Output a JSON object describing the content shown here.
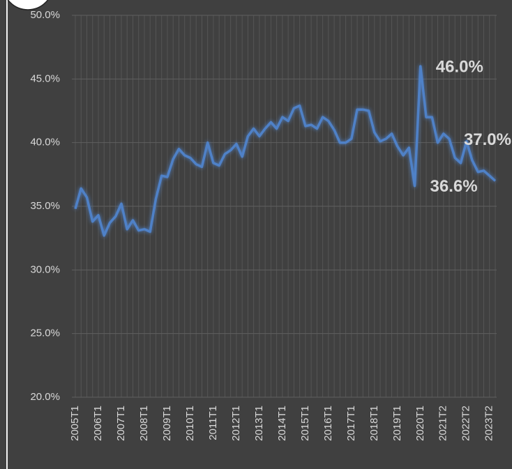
{
  "chart_data": {
    "type": "line",
    "categories": [
      "2005T1",
      null,
      null,
      null,
      "2006T1",
      null,
      null,
      null,
      "2007T1",
      null,
      null,
      null,
      "2008T1",
      null,
      null,
      null,
      "2009T1",
      null,
      null,
      null,
      "2010T1",
      null,
      null,
      null,
      "2011T1",
      null,
      null,
      null,
      "2012T1",
      null,
      null,
      null,
      "2013T1",
      null,
      null,
      null,
      "2014T1",
      null,
      null,
      null,
      "2015T1",
      null,
      null,
      null,
      "2016T1",
      null,
      null,
      null,
      "2017T1",
      null,
      null,
      null,
      "2018T1",
      null,
      null,
      null,
      "2019T1",
      null,
      null,
      null,
      "2020T1",
      null,
      null,
      null,
      "2021T2",
      null,
      null,
      null,
      "2022T2",
      null,
      null,
      null,
      "2023T2",
      null
    ],
    "series": [
      {
        "color": "#4f81c7",
        "values": [
          34.8,
          36.4,
          35.7,
          33.8,
          34.3,
          32.7,
          33.7,
          34.2,
          35.2,
          33.2,
          33.9,
          33.1,
          33.2,
          33.0,
          35.6,
          37.4,
          37.3,
          38.7,
          39.5,
          39.0,
          38.8,
          38.3,
          38.1,
          40.0,
          38.4,
          38.2,
          39.1,
          39.4,
          39.9,
          38.9,
          40.5,
          41.1,
          40.5,
          41.1,
          41.6,
          41.1,
          42.0,
          41.7,
          42.7,
          42.9,
          41.3,
          41.4,
          41.1,
          42.0,
          41.7,
          41.0,
          40.0,
          40.0,
          40.3,
          42.6,
          42.6,
          42.5,
          40.8,
          40.1,
          40.3,
          40.7,
          39.7,
          39.0,
          39.6,
          36.6,
          46.0,
          42.0,
          42.0,
          40.0,
          40.7,
          40.3,
          38.8,
          38.4,
          40.1,
          38.6,
          37.7,
          37.8,
          37.4,
          37.0
        ],
        "value_labels": [
          null,
          null,
          null,
          null,
          null,
          null,
          null,
          null,
          null,
          null,
          null,
          null,
          null,
          null,
          null,
          null,
          null,
          null,
          null,
          null,
          null,
          null,
          null,
          null,
          null,
          null,
          null,
          null,
          null,
          null,
          null,
          null,
          null,
          null,
          null,
          null,
          null,
          null,
          null,
          null,
          null,
          null,
          null,
          null,
          null,
          null,
          null,
          null,
          null,
          null,
          null,
          null,
          null,
          null,
          null,
          null,
          null,
          null,
          null,
          "36.6%",
          "46.0%",
          null,
          null,
          null,
          null,
          null,
          null,
          null,
          null,
          null,
          null,
          null,
          null,
          "37.0%"
        ]
      }
    ],
    "ylim": [
      20,
      50
    ],
    "yticks": [
      {
        "value": 20,
        "label": "20.0%"
      },
      {
        "value": 25,
        "label": "25.0%"
      },
      {
        "value": 30,
        "label": "30.0%"
      },
      {
        "value": 35,
        "label": "35.0%"
      },
      {
        "value": 40,
        "label": "40.0%"
      },
      {
        "value": 45,
        "label": "45.0%"
      },
      {
        "value": 50,
        "label": "50.0%"
      }
    ],
    "grid": true
  }
}
